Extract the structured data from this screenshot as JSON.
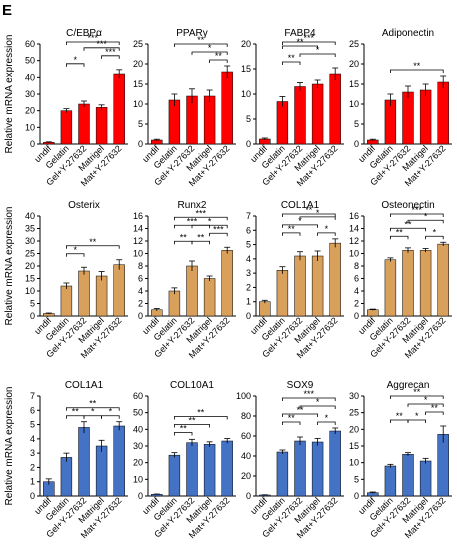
{
  "panel_label": "E",
  "ylabel": "Relative mRNA expression",
  "colors": {
    "red": "#ff0000",
    "orange": "#d9a05b",
    "blue": "#4472c4",
    "error": "#000000",
    "sig_red": "#ff0000"
  },
  "chart_data": [
    {
      "type": "bar",
      "title": "C/EBPα",
      "categories": [
        "undif",
        "Gelatin",
        "Gel+Y-27632",
        "Matrigel",
        "Mat+Y-27632"
      ],
      "values": [
        1,
        20,
        24,
        22,
        42
      ],
      "errors": [
        0.3,
        1.2,
        1.8,
        1.5,
        2.5
      ],
      "ylim": [
        0,
        60
      ],
      "ticks": [
        0,
        10,
        20,
        30,
        40,
        50,
        60
      ],
      "color": "red",
      "sig": [
        {
          "a": 1,
          "b": 2,
          "label": "*",
          "level": 0
        },
        {
          "a": 3,
          "b": 4,
          "label": "***",
          "level": 1
        },
        {
          "a": 2,
          "b": 4,
          "label": "***",
          "level": 2
        },
        {
          "a": 1,
          "b": 4,
          "label": "***",
          "level": 3
        }
      ]
    },
    {
      "type": "bar",
      "title": "PPARγ",
      "categories": [
        "undif",
        "Gelatin",
        "Gel+Y-27632",
        "Matrigel",
        "Mat+Y-27632"
      ],
      "values": [
        1,
        11,
        12,
        12,
        18
      ],
      "errors": [
        0.2,
        1.5,
        1.8,
        1.5,
        1.5
      ],
      "ylim": [
        0,
        25
      ],
      "ticks": [
        0,
        5,
        10,
        15,
        20,
        25
      ],
      "color": "red",
      "sig": [
        {
          "a": 3,
          "b": 4,
          "label": "**",
          "level": 0
        },
        {
          "a": 2,
          "b": 4,
          "label": "*",
          "level": 1
        },
        {
          "a": 1,
          "b": 4,
          "label": "**",
          "level": 2
        }
      ]
    },
    {
      "type": "bar",
      "title": "FABP4",
      "categories": [
        "undif",
        "Gelatin",
        "Gel+Y-27632",
        "Matrigel",
        "Mat+Y-27632"
      ],
      "values": [
        1,
        8.5,
        11.5,
        12,
        14
      ],
      "errors": [
        0.2,
        1.0,
        0.8,
        0.8,
        1.2
      ],
      "ylim": [
        0,
        20
      ],
      "ticks": [
        0,
        5,
        10,
        15,
        20
      ],
      "color": "red",
      "sig": [
        {
          "a": 1,
          "b": 2,
          "label": "**",
          "level": 0
        },
        {
          "a": 2,
          "b": 4,
          "label": "*",
          "level": 1
        },
        {
          "a": 1,
          "b": 3,
          "label": "**",
          "level": 2
        },
        {
          "a": 1,
          "b": 4,
          "label": "***",
          "level": 3
        }
      ]
    },
    {
      "type": "bar",
      "title": "Adiponectin",
      "categories": [
        "undif",
        "Gelatin",
        "Gel+Y-27632",
        "Matrigel",
        "Mat+Y-27632"
      ],
      "values": [
        1,
        11,
        13,
        13.5,
        15.5
      ],
      "errors": [
        0.2,
        1.5,
        1.5,
        1.5,
        1.5
      ],
      "ylim": [
        0,
        25
      ],
      "ticks": [
        0,
        5,
        10,
        15,
        20,
        25
      ],
      "color": "red",
      "sig": [
        {
          "a": 1,
          "b": 4,
          "label": "**",
          "level": 0
        }
      ]
    },
    {
      "type": "bar",
      "title": "Osterix",
      "categories": [
        "undif",
        "Gelatin",
        "Gel+Y-27632",
        "Matrigel",
        "Mat+Y-27632"
      ],
      "values": [
        1,
        12,
        18,
        16,
        20.5
      ],
      "errors": [
        0.2,
        1.2,
        1.5,
        1.8,
        2.0
      ],
      "ylim": [
        0,
        40
      ],
      "ticks": [
        0,
        5,
        10,
        15,
        20,
        25,
        30,
        35,
        40
      ],
      "color": "orange",
      "sig": [
        {
          "a": 1,
          "b": 2,
          "label": "*",
          "level": 0
        },
        {
          "a": 1,
          "b": 4,
          "label": "**",
          "level": 1,
          "red": true
        }
      ]
    },
    {
      "type": "bar",
      "title": "Runx2",
      "categories": [
        "undif",
        "Gelatin",
        "Gel+Y-27632",
        "Matrigel",
        "Mat+Y-27632"
      ],
      "values": [
        1,
        4,
        8,
        6,
        10.5
      ],
      "errors": [
        0.2,
        0.5,
        0.8,
        0.4,
        0.5
      ],
      "ylim": [
        0,
        16
      ],
      "ticks": [
        0,
        2,
        4,
        6,
        8,
        10,
        12,
        14,
        16
      ],
      "color": "orange",
      "sig": [
        {
          "a": 1,
          "b": 2,
          "label": "**",
          "level": 0
        },
        {
          "a": 2,
          "b": 3,
          "label": "**",
          "level": 0
        },
        {
          "a": 3,
          "b": 4,
          "label": "***",
          "level": 1
        },
        {
          "a": 2,
          "b": 4,
          "label": "*",
          "level": 2
        },
        {
          "a": 1,
          "b": 3,
          "label": "***",
          "level": 2
        },
        {
          "a": 1,
          "b": 4,
          "label": "***",
          "level": 3
        }
      ]
    },
    {
      "type": "bar",
      "title": "COL1A1",
      "categories": [
        "undif",
        "Gelatin",
        "Gel+Y-27632",
        "Matrigel",
        "Mat+Y-27632"
      ],
      "values": [
        1,
        3.2,
        4.2,
        4.2,
        5.1
      ],
      "errors": [
        0.1,
        0.25,
        0.3,
        0.35,
        0.3
      ],
      "ylim": [
        0,
        7
      ],
      "ticks": [
        0,
        1,
        2,
        3,
        4,
        5,
        6,
        7
      ],
      "color": "orange",
      "sig": [
        {
          "a": 1,
          "b": 2,
          "label": "**",
          "level": 0
        },
        {
          "a": 3,
          "b": 4,
          "label": "*",
          "level": 0
        },
        {
          "a": 1,
          "b": 3,
          "label": "*",
          "level": 1
        },
        {
          "a": 2,
          "b": 4,
          "label": "*",
          "level": 2
        },
        {
          "a": 1,
          "b": 4,
          "label": "**",
          "level": 3
        }
      ]
    },
    {
      "type": "bar",
      "title": "Osteonectin",
      "categories": [
        "undif",
        "Gelatin",
        "Gel+Y-27632",
        "Matrigel",
        "Mat+Y-27632"
      ],
      "values": [
        1,
        9,
        10.5,
        10.5,
        11.5
      ],
      "errors": [
        0.1,
        0.3,
        0.4,
        0.3,
        0.3
      ],
      "ylim": [
        0,
        16
      ],
      "ticks": [
        0,
        2,
        4,
        6,
        8,
        10,
        12,
        14,
        16
      ],
      "color": "orange",
      "sig": [
        {
          "a": 1,
          "b": 2,
          "label": "**",
          "level": 0
        },
        {
          "a": 3,
          "b": 4,
          "label": "*",
          "level": 0
        },
        {
          "a": 1,
          "b": 3,
          "label": "**",
          "level": 1
        },
        {
          "a": 2,
          "b": 4,
          "label": "*",
          "level": 2
        },
        {
          "a": 1,
          "b": 4,
          "label": "***",
          "level": 3
        }
      ]
    },
    {
      "type": "bar",
      "title": "COL1A1",
      "categories": [
        "undif",
        "Gelatin",
        "Gel+Y-27632",
        "Matrigel",
        "Mat+Y-27632"
      ],
      "values": [
        1,
        2.7,
        4.8,
        3.5,
        4.9
      ],
      "errors": [
        0.2,
        0.3,
        0.4,
        0.4,
        0.3
      ],
      "ylim": [
        0,
        7
      ],
      "ticks": [
        0,
        1,
        2,
        3,
        4,
        5,
        6,
        7
      ],
      "color": "blue",
      "sig": [
        {
          "a": 1,
          "b": 2,
          "label": "**",
          "level": 0
        },
        {
          "a": 2,
          "b": 3,
          "label": "*",
          "level": 0
        },
        {
          "a": 3,
          "b": 4,
          "label": "*",
          "level": 0
        },
        {
          "a": 1,
          "b": 4,
          "label": "**",
          "level": 1
        }
      ]
    },
    {
      "type": "bar",
      "title": "COL10A1",
      "categories": [
        "undif",
        "Gelatin",
        "Gel+Y-27632",
        "Matrigel",
        "Mat+Y-27632"
      ],
      "values": [
        1,
        24.5,
        32,
        31,
        33
      ],
      "errors": [
        0.2,
        1.5,
        2.0,
        1.5,
        1.5
      ],
      "ylim": [
        0,
        60
      ],
      "ticks": [
        0,
        10,
        20,
        30,
        40,
        50,
        60
      ],
      "color": "blue",
      "sig": [
        {
          "a": 1,
          "b": 2,
          "label": "**",
          "level": 0
        },
        {
          "a": 1,
          "b": 3,
          "label": "**",
          "level": 1
        },
        {
          "a": 1,
          "b": 4,
          "label": "**",
          "level": 2
        }
      ]
    },
    {
      "type": "bar",
      "title": "SOX9",
      "categories": [
        "undif",
        "Gelatin",
        "Gel+Y-27632",
        "Matrigel",
        "Mat+Y-27632"
      ],
      "values": [
        1,
        44,
        55,
        54,
        65
      ],
      "errors": [
        0.2,
        2.0,
        4.0,
        3.5,
        3.0
      ],
      "ylim": [
        0,
        100
      ],
      "ticks": [
        0,
        20,
        40,
        60,
        80,
        100
      ],
      "color": "blue",
      "sig": [
        {
          "a": 1,
          "b": 2,
          "label": "**",
          "level": 0
        },
        {
          "a": 3,
          "b": 4,
          "label": "*",
          "level": 0
        },
        {
          "a": 1,
          "b": 3,
          "label": "**",
          "level": 1
        },
        {
          "a": 2,
          "b": 4,
          "label": "*",
          "level": 2
        },
        {
          "a": 1,
          "b": 4,
          "label": "***",
          "level": 3
        }
      ]
    },
    {
      "type": "bar",
      "title": "Aggrecan",
      "categories": [
        "undif",
        "Gelatin",
        "Gel+Y-27632",
        "Matrigel",
        "Mat+Y-27632"
      ],
      "values": [
        1,
        9,
        12.5,
        10.5,
        18.5
      ],
      "errors": [
        0.2,
        0.5,
        0.5,
        0.8,
        2.5
      ],
      "ylim": [
        0,
        30
      ],
      "ticks": [
        0,
        5,
        10,
        15,
        20,
        25,
        30
      ],
      "color": "blue",
      "sig": [
        {
          "a": 1,
          "b": 2,
          "label": "**",
          "level": 0
        },
        {
          "a": 2,
          "b": 3,
          "label": "*",
          "level": 0
        },
        {
          "a": 3,
          "b": 4,
          "label": "**",
          "level": 1
        },
        {
          "a": 2,
          "b": 4,
          "label": "*",
          "level": 2
        },
        {
          "a": 1,
          "b": 4,
          "label": "**",
          "level": 3
        }
      ]
    }
  ]
}
